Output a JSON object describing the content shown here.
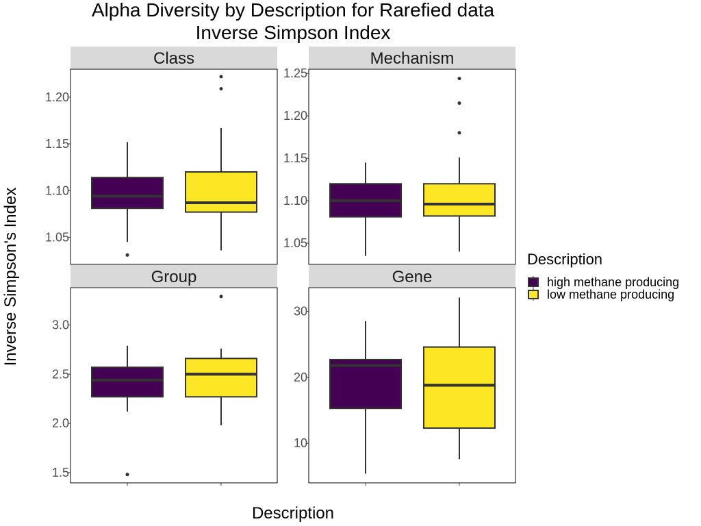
{
  "chart_data": {
    "type": "box",
    "title_lines": [
      "Alpha Diversity by Description for Rarefied data",
      "Inverse Simpson Index"
    ],
    "xlabel": "Description",
    "ylabel": "Inverse Simpson's Index",
    "legend": {
      "title": "Description",
      "position": "right",
      "items": [
        {
          "label": "high methane producing",
          "color": "#440154"
        },
        {
          "label": "low methane producing",
          "color": "#FDE725"
        }
      ]
    },
    "groups": [
      "high methane producing",
      "low methane producing"
    ],
    "panels": [
      {
        "strip": "Class",
        "ylim": [
          1.021,
          1.23
        ],
        "yticks": [
          1.05,
          1.1,
          1.15,
          1.2
        ],
        "ytick_labels": [
          "1.05",
          "1.10",
          "1.15",
          "1.20"
        ],
        "boxes": [
          {
            "group": "high methane producing",
            "lower_whisker": 1.045,
            "q1": 1.081,
            "median": 1.094,
            "q3": 1.114,
            "upper_whisker": 1.152,
            "outliers": [
              1.031
            ]
          },
          {
            "group": "low methane producing",
            "lower_whisker": 1.036,
            "q1": 1.077,
            "median": 1.087,
            "q3": 1.12,
            "upper_whisker": 1.167,
            "outliers": [
              1.209,
              1.222
            ]
          }
        ]
      },
      {
        "strip": "Mechanism",
        "ylim": [
          1.025,
          1.255
        ],
        "yticks": [
          1.05,
          1.1,
          1.15,
          1.2,
          1.25
        ],
        "ytick_labels": [
          "1.05",
          "1.10",
          "1.15",
          "1.20",
          "1.25"
        ],
        "boxes": [
          {
            "group": "high methane producing",
            "lower_whisker": 1.035,
            "q1": 1.081,
            "median": 1.1,
            "q3": 1.12,
            "upper_whisker": 1.145,
            "outliers": []
          },
          {
            "group": "low methane producing",
            "lower_whisker": 1.04,
            "q1": 1.082,
            "median": 1.096,
            "q3": 1.12,
            "upper_whisker": 1.151,
            "outliers": [
              1.18,
              1.215,
              1.244
            ]
          }
        ]
      },
      {
        "strip": "Group",
        "ylim": [
          1.395,
          3.38
        ],
        "yticks": [
          1.5,
          2.0,
          2.5,
          3.0
        ],
        "ytick_labels": [
          "1.5",
          "2.0",
          "2.5",
          "3.0"
        ],
        "boxes": [
          {
            "group": "high methane producing",
            "lower_whisker": 2.12,
            "q1": 2.27,
            "median": 2.44,
            "q3": 2.57,
            "upper_whisker": 2.79,
            "outliers": [
              1.48
            ]
          },
          {
            "group": "low methane producing",
            "lower_whisker": 1.98,
            "q1": 2.27,
            "median": 2.5,
            "q3": 2.66,
            "upper_whisker": 2.76,
            "outliers": [
              3.29
            ]
          }
        ]
      },
      {
        "strip": "Gene",
        "ylim": [
          4.0,
          33.6
        ],
        "yticks": [
          10,
          20,
          30
        ],
        "ytick_labels": [
          "10",
          "20",
          "30"
        ],
        "boxes": [
          {
            "group": "high methane producing",
            "lower_whisker": 5.4,
            "q1": 15.3,
            "median": 21.8,
            "q3": 22.7,
            "upper_whisker": 28.5,
            "outliers": []
          },
          {
            "group": "low methane producing",
            "lower_whisker": 7.6,
            "q1": 12.3,
            "median": 18.8,
            "q3": 24.6,
            "upper_whisker": 32.1,
            "outliers": []
          }
        ]
      }
    ]
  }
}
